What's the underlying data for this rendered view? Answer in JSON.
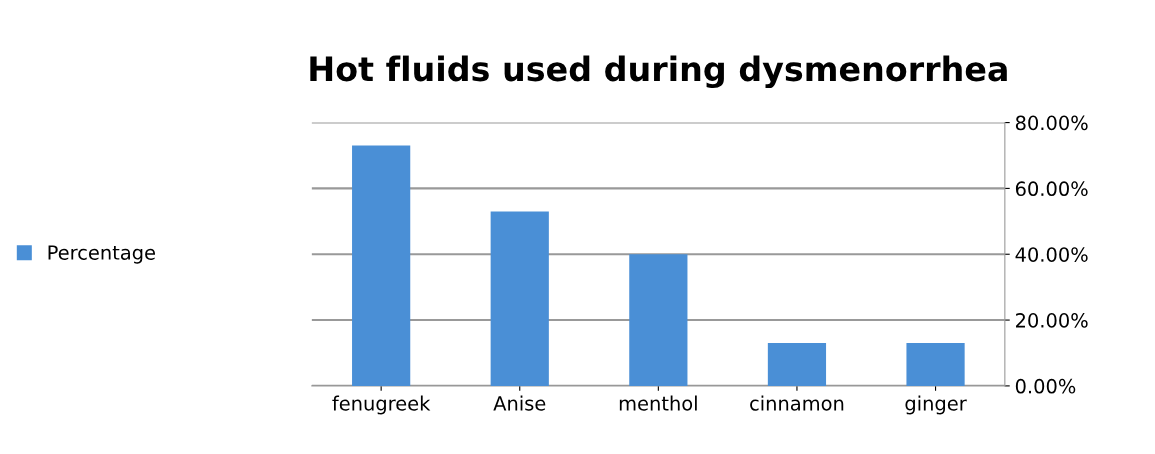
{
  "chart_data": {
    "type": "bar",
    "title": "Hot fluids used during dysmenorrhea",
    "categories": [
      "fenugreek",
      "Anise",
      "menthol",
      "cinnamon",
      "ginger"
    ],
    "series": [
      {
        "name": "Percentage",
        "color": "#4a8fd6",
        "values": [
          73,
          53,
          40,
          13,
          13
        ]
      }
    ],
    "ylim": [
      0,
      80
    ],
    "yticks": [
      {
        "value": 0,
        "label": "0.00%"
      },
      {
        "value": 20,
        "label": "20.00%"
      },
      {
        "value": 40,
        "label": "40.00%"
      },
      {
        "value": 60,
        "label": "60.00%"
      },
      {
        "value": 80,
        "label": "80.00%"
      }
    ],
    "grid": "y",
    "legend": "left"
  }
}
